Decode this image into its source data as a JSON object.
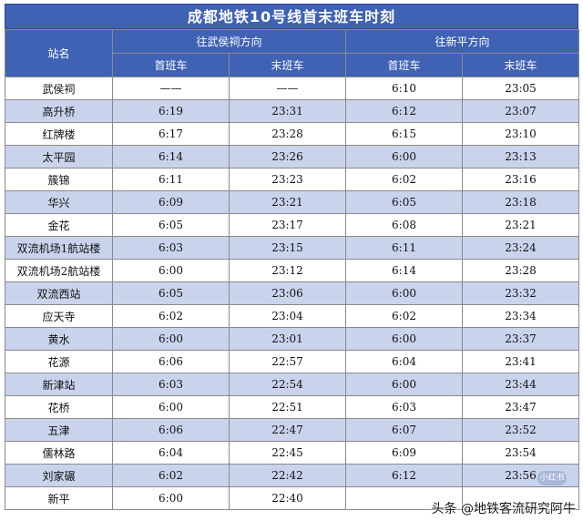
{
  "title": "成都地铁10号线首末班车时刻",
  "headers": {
    "station": "站名",
    "dir1": "往武侯祠方向",
    "dir2": "往新平方向",
    "first": "首班车",
    "last": "末班车"
  },
  "rows": [
    {
      "station": "武侯祠",
      "d1_first": "——",
      "d1_last": "——",
      "d2_first": "6:10",
      "d2_last": "23:05"
    },
    {
      "station": "高升桥",
      "d1_first": "6:19",
      "d1_last": "23:31",
      "d2_first": "6:12",
      "d2_last": "23:07"
    },
    {
      "station": "红牌楼",
      "d1_first": "6:17",
      "d1_last": "23:28",
      "d2_first": "6:15",
      "d2_last": "23:10"
    },
    {
      "station": "太平园",
      "d1_first": "6:14",
      "d1_last": "23:26",
      "d2_first": "6:00",
      "d2_last": "23:13"
    },
    {
      "station": "簇锦",
      "d1_first": "6:11",
      "d1_last": "23:23",
      "d2_first": "6:02",
      "d2_last": "23:16"
    },
    {
      "station": "华兴",
      "d1_first": "6:09",
      "d1_last": "23:21",
      "d2_first": "6:05",
      "d2_last": "23:18"
    },
    {
      "station": "金花",
      "d1_first": "6:05",
      "d1_last": "23:17",
      "d2_first": "6:08",
      "d2_last": "23:21"
    },
    {
      "station": "双流机场1航站楼",
      "d1_first": "6:03",
      "d1_last": "23:15",
      "d2_first": "6:11",
      "d2_last": "23:24"
    },
    {
      "station": "双流机场2航站楼",
      "d1_first": "6:00",
      "d1_last": "23:12",
      "d2_first": "6:14",
      "d2_last": "23:28"
    },
    {
      "station": "双流西站",
      "d1_first": "6:05",
      "d1_last": "23:06",
      "d2_first": "6:00",
      "d2_last": "23:32"
    },
    {
      "station": "应天寺",
      "d1_first": "6:02",
      "d1_last": "23:04",
      "d2_first": "6:02",
      "d2_last": "23:34"
    },
    {
      "station": "黄水",
      "d1_first": "6:00",
      "d1_last": "23:01",
      "d2_first": "6:00",
      "d2_last": "23:37"
    },
    {
      "station": "花源",
      "d1_first": "6:06",
      "d1_last": "22:57",
      "d2_first": "6:04",
      "d2_last": "23:41"
    },
    {
      "station": "新津站",
      "d1_first": "6:03",
      "d1_last": "22:54",
      "d2_first": "6:00",
      "d2_last": "23:44"
    },
    {
      "station": "花桥",
      "d1_first": "6:00",
      "d1_last": "22:51",
      "d2_first": "6:03",
      "d2_last": "23:47"
    },
    {
      "station": "五津",
      "d1_first": "6:06",
      "d1_last": "22:47",
      "d2_first": "6:07",
      "d2_last": "23:52"
    },
    {
      "station": "儒林路",
      "d1_first": "6:04",
      "d1_last": "22:45",
      "d2_first": "6:09",
      "d2_last": "23:54"
    },
    {
      "station": "刘家碾",
      "d1_first": "6:02",
      "d1_last": "22:42",
      "d2_first": "6:12",
      "d2_last": "23:56"
    },
    {
      "station": "新平",
      "d1_first": "6:00",
      "d1_last": "22:40",
      "d2_first": "",
      "d2_last": ""
    }
  ],
  "watermark": "头条 @地铁客流研究阿牛",
  "badge": "小红书"
}
